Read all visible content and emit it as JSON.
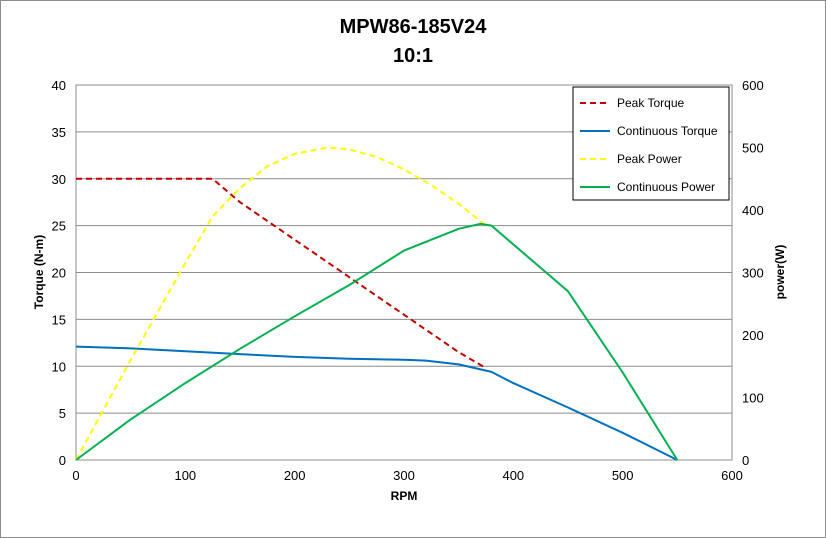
{
  "chart_data": {
    "type": "line",
    "title": "MPW86-185V24",
    "subtitle": "10:1",
    "xlabel": "RPM",
    "ylabel": "Torque (N-m)",
    "y2label": "power(W)",
    "xlim": [
      0,
      600
    ],
    "ylim": [
      0,
      40
    ],
    "y2lim": [
      0,
      600
    ],
    "x_ticks": [
      0,
      100,
      200,
      300,
      400,
      500,
      600
    ],
    "y_ticks": [
      0,
      5,
      10,
      15,
      20,
      25,
      30,
      35,
      40
    ],
    "y2_ticks": [
      0,
      100,
      200,
      300,
      400,
      500,
      600
    ],
    "grid": true,
    "legend_position": "top-right",
    "series": [
      {
        "name": "Peak Torque",
        "axis": "left",
        "color": "#c00000",
        "dash": "dashed",
        "points": [
          [
            0,
            30
          ],
          [
            125,
            30
          ],
          [
            150,
            27.5
          ],
          [
            200,
            23.5
          ],
          [
            250,
            19.5
          ],
          [
            300,
            15.5
          ],
          [
            350,
            11.5
          ],
          [
            375,
            9.8
          ]
        ]
      },
      {
        "name": "Continuous Torque",
        "axis": "left",
        "color": "#0070c0",
        "dash": "solid",
        "points": [
          [
            0,
            12.1
          ],
          [
            50,
            11.9
          ],
          [
            100,
            11.6
          ],
          [
            150,
            11.3
          ],
          [
            200,
            11.0
          ],
          [
            250,
            10.8
          ],
          [
            300,
            10.7
          ],
          [
            320,
            10.6
          ],
          [
            350,
            10.2
          ],
          [
            380,
            9.4
          ],
          [
            400,
            8.2
          ],
          [
            450,
            5.6
          ],
          [
            500,
            2.9
          ],
          [
            550,
            0
          ]
        ]
      },
      {
        "name": "Peak Power",
        "axis": "right",
        "color": "#ffff00",
        "dash": "dashed",
        "points": [
          [
            0,
            0
          ],
          [
            50,
            160
          ],
          [
            100,
            315
          ],
          [
            125,
            390
          ],
          [
            150,
            435
          ],
          [
            175,
            470
          ],
          [
            200,
            490
          ],
          [
            230,
            500
          ],
          [
            250,
            497
          ],
          [
            275,
            485
          ],
          [
            300,
            465
          ],
          [
            325,
            440
          ],
          [
            350,
            410
          ],
          [
            375,
            375
          ]
        ]
      },
      {
        "name": "Continuous Power",
        "axis": "right",
        "color": "#00b050",
        "dash": "solid",
        "points": [
          [
            0,
            0
          ],
          [
            50,
            65
          ],
          [
            100,
            123
          ],
          [
            150,
            178
          ],
          [
            200,
            230
          ],
          [
            250,
            280
          ],
          [
            300,
            335
          ],
          [
            350,
            370
          ],
          [
            370,
            378
          ],
          [
            380,
            375
          ],
          [
            400,
            345
          ],
          [
            450,
            270
          ],
          [
            500,
            140
          ],
          [
            550,
            0
          ]
        ]
      }
    ]
  }
}
